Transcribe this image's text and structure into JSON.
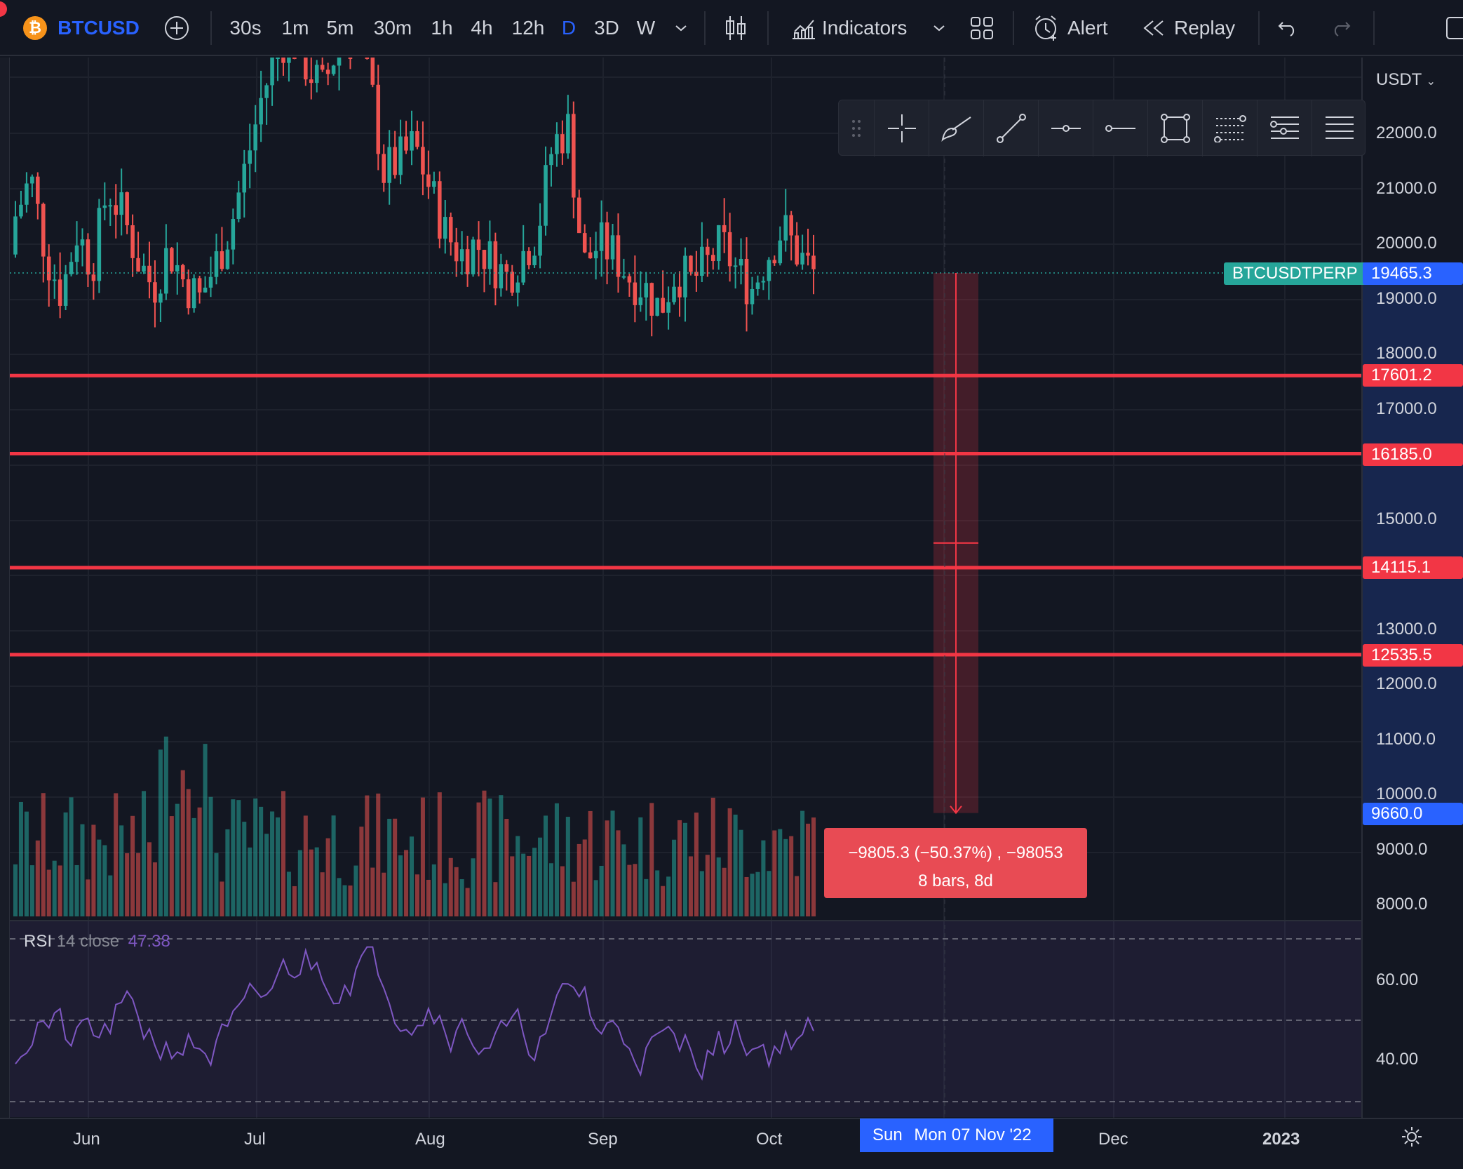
{
  "toolbar": {
    "symbol": "BTCUSD",
    "timeframes": [
      "30s",
      "1m",
      "5m",
      "30m",
      "1h",
      "4h",
      "12h",
      "D",
      "3D",
      "W"
    ],
    "active_timeframe": "D",
    "indicators_label": "Indicators",
    "alert_label": "Alert",
    "replay_label": "Replay"
  },
  "price_axis": {
    "currency": "USDT",
    "ticks": [
      "22000.0",
      "21000.0",
      "20000.0",
      "19000.0",
      "18000.0",
      "17000.0",
      "15000.0",
      "13000.0",
      "12000.0",
      "11000.0",
      "10000.0",
      "9000.0",
      "8000.0"
    ],
    "rsi_ticks": [
      "60.00",
      "40.00"
    ]
  },
  "price_tags": {
    "symbol_label": "BTCUSDTPERP",
    "last_price": "19465.3",
    "h1": "17601.2",
    "h2": "16185.0",
    "h3": "14115.1",
    "h4": "12535.5",
    "measure_end": "9660.0"
  },
  "measure": {
    "line1": "−9805.3 (−50.37%) , −98053",
    "line2": "8 bars, 8d"
  },
  "rsi": {
    "name": "RSI",
    "params": "14 close",
    "value": "47.38"
  },
  "time_axis": {
    "labels": [
      "Jun",
      "Jul",
      "Aug",
      "Sep",
      "Oct",
      "Dec",
      "2023"
    ],
    "crosshair_prefix": "Sun",
    "crosshair_date": "Mon 07 Nov '22"
  },
  "colors": {
    "up": "#26a69a",
    "down": "#ef5350",
    "level_line": "#f23645",
    "rsi_line": "#7e57c2",
    "accent": "#2962ff"
  },
  "chart_data": {
    "type": "candlestick",
    "series": [
      {
        "name": "BTCUSD",
        "close_approx": [
          20500,
          21200,
          19800,
          19100,
          20200,
          19600,
          21000,
          20500,
          19700,
          19200,
          19900,
          19300,
          19000,
          19600,
          20300,
          21400,
          22600,
          23500,
          23900,
          23200,
          22800,
          23600,
          24000,
          23100,
          21300,
          21500,
          21800,
          21000,
          20200,
          19800,
          20000,
          19700,
          19400,
          19800,
          20200,
          21800,
          22100,
          19600,
          20000,
          19800,
          19400,
          19200,
          18800,
          19500,
          19300,
          19600,
          20000,
          19500,
          19200,
          19800,
          20300,
          19800,
          19465
        ]
      }
    ],
    "horizontal_levels": [
      17601.2,
      16185.0,
      14115.1,
      12535.5
    ],
    "last_price": 19465.3,
    "measure_target": 9660.0,
    "rsi_value": 47.38
  }
}
